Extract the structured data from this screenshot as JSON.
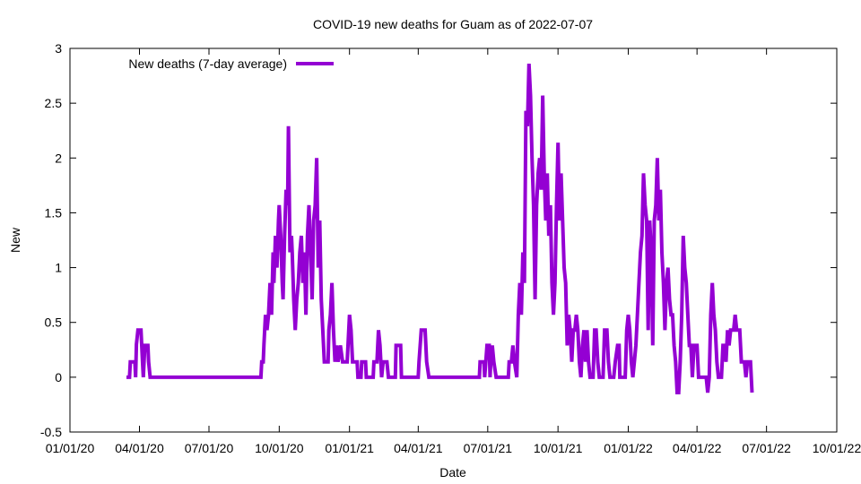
{
  "chart_data": {
    "type": "line",
    "title": "COVID-19 new deaths for Guam as of 2022-07-07",
    "xlabel": "Date",
    "ylabel": "New",
    "ylim": [
      -0.5,
      3
    ],
    "yticks": [
      "-0.5",
      "0",
      "0.5",
      "1",
      "1.5",
      "2",
      "2.5",
      "3"
    ],
    "xlim": [
      "2020-01-01",
      "2022-10-01"
    ],
    "xticks": [
      "01/01/20",
      "04/01/20",
      "07/01/20",
      "10/01/20",
      "01/01/21",
      "04/01/21",
      "07/01/21",
      "10/01/21",
      "01/01/22",
      "04/01/22",
      "07/01/22",
      "10/01/22"
    ],
    "legend": {
      "position": "top-left"
    },
    "colors": {
      "series": "#9400d3",
      "axis": "#000000"
    },
    "series": [
      {
        "name": "New deaths (7-day average)",
        "points": [
          [
            "2020-03-15",
            0
          ],
          [
            "2020-03-19",
            0
          ],
          [
            "2020-03-20",
            0.14
          ],
          [
            "2020-03-26",
            0.14
          ],
          [
            "2020-03-27",
            0
          ],
          [
            "2020-03-28",
            0.3
          ],
          [
            "2020-03-30",
            0.43
          ],
          [
            "2020-04-03",
            0.43
          ],
          [
            "2020-04-05",
            0.14
          ],
          [
            "2020-04-06",
            0
          ],
          [
            "2020-04-08",
            0.29
          ],
          [
            "2020-04-12",
            0.29
          ],
          [
            "2020-04-13",
            0.14
          ],
          [
            "2020-04-15",
            0
          ],
          [
            "2020-09-07",
            0
          ],
          [
            "2020-09-08",
            0.14
          ],
          [
            "2020-09-10",
            0.14
          ],
          [
            "2020-09-11",
            0.3
          ],
          [
            "2020-09-13",
            0.57
          ],
          [
            "2020-09-15",
            0.43
          ],
          [
            "2020-09-17",
            0.57
          ],
          [
            "2020-09-19",
            0.86
          ],
          [
            "2020-09-21",
            0.57
          ],
          [
            "2020-09-23",
            1.14
          ],
          [
            "2020-09-24",
            0.86
          ],
          [
            "2020-09-26",
            1.29
          ],
          [
            "2020-09-28",
            1.0
          ],
          [
            "2020-09-30",
            1.43
          ],
          [
            "2020-10-01",
            1.57
          ],
          [
            "2020-10-03",
            1.29
          ],
          [
            "2020-10-05",
            0.86
          ],
          [
            "2020-10-06",
            0.71
          ],
          [
            "2020-10-08",
            1.29
          ],
          [
            "2020-10-10",
            1.71
          ],
          [
            "2020-10-12",
            1.57
          ],
          [
            "2020-10-13",
            2.29
          ],
          [
            "2020-10-15",
            1.14
          ],
          [
            "2020-10-17",
            1.29
          ],
          [
            "2020-10-18",
            1.14
          ],
          [
            "2020-10-20",
            0.71
          ],
          [
            "2020-10-22",
            0.43
          ],
          [
            "2020-10-24",
            0.71
          ],
          [
            "2020-10-26",
            0.86
          ],
          [
            "2020-10-28",
            1.14
          ],
          [
            "2020-10-30",
            1.29
          ],
          [
            "2020-11-01",
            0.86
          ],
          [
            "2020-11-03",
            1.14
          ],
          [
            "2020-11-05",
            0.57
          ],
          [
            "2020-11-07",
            1.29
          ],
          [
            "2020-11-09",
            1.57
          ],
          [
            "2020-11-11",
            1.14
          ],
          [
            "2020-11-13",
            0.71
          ],
          [
            "2020-11-15",
            1.43
          ],
          [
            "2020-11-17",
            1.57
          ],
          [
            "2020-11-19",
            2.0
          ],
          [
            "2020-11-21",
            1.0
          ],
          [
            "2020-11-23",
            1.43
          ],
          [
            "2020-11-25",
            0.71
          ],
          [
            "2020-11-27",
            0.43
          ],
          [
            "2020-11-29",
            0.14
          ],
          [
            "2020-12-04",
            0.14
          ],
          [
            "2020-12-05",
            0.43
          ],
          [
            "2020-12-07",
            0.57
          ],
          [
            "2020-12-09",
            0.86
          ],
          [
            "2020-12-11",
            0.43
          ],
          [
            "2020-12-13",
            0.14
          ],
          [
            "2020-12-15",
            0.29
          ],
          [
            "2020-12-17",
            0.14
          ],
          [
            "2020-12-20",
            0.29
          ],
          [
            "2020-12-23",
            0.14
          ],
          [
            "2020-12-29",
            0.14
          ],
          [
            "2021-01-01",
            0.57
          ],
          [
            "2021-01-03",
            0.43
          ],
          [
            "2021-01-05",
            0.14
          ],
          [
            "2021-01-11",
            0.14
          ],
          [
            "2021-01-12",
            0
          ],
          [
            "2021-01-16",
            0
          ],
          [
            "2021-01-17",
            0.14
          ],
          [
            "2021-01-22",
            0.14
          ],
          [
            "2021-01-23",
            0
          ],
          [
            "2021-02-01",
            0
          ],
          [
            "2021-02-02",
            0.14
          ],
          [
            "2021-02-06",
            0.14
          ],
          [
            "2021-02-08",
            0.43
          ],
          [
            "2021-02-10",
            0.29
          ],
          [
            "2021-02-12",
            0
          ],
          [
            "2021-02-14",
            0.14
          ],
          [
            "2021-02-19",
            0.14
          ],
          [
            "2021-02-21",
            0
          ],
          [
            "2021-03-02",
            0
          ],
          [
            "2021-03-03",
            0.29
          ],
          [
            "2021-03-09",
            0.29
          ],
          [
            "2021-03-10",
            0
          ],
          [
            "2021-04-01",
            0
          ],
          [
            "2021-04-02",
            0.14
          ],
          [
            "2021-04-05",
            0.43
          ],
          [
            "2021-04-10",
            0.43
          ],
          [
            "2021-04-12",
            0.14
          ],
          [
            "2021-04-15",
            0
          ],
          [
            "2021-06-20",
            0
          ],
          [
            "2021-06-21",
            0.14
          ],
          [
            "2021-06-26",
            0.14
          ],
          [
            "2021-06-27",
            0
          ],
          [
            "2021-06-30",
            0.29
          ],
          [
            "2021-07-03",
            0.29
          ],
          [
            "2021-07-04",
            0
          ],
          [
            "2021-07-05",
            0.14
          ],
          [
            "2021-07-07",
            0.29
          ],
          [
            "2021-07-09",
            0.14
          ],
          [
            "2021-07-12",
            0
          ],
          [
            "2021-07-28",
            0
          ],
          [
            "2021-07-29",
            0.14
          ],
          [
            "2021-08-01",
            0.14
          ],
          [
            "2021-08-03",
            0.29
          ],
          [
            "2021-08-05",
            0.14
          ],
          [
            "2021-08-08",
            0
          ],
          [
            "2021-08-10",
            0.57
          ],
          [
            "2021-08-12",
            0.86
          ],
          [
            "2021-08-14",
            0.57
          ],
          [
            "2021-08-16",
            1.14
          ],
          [
            "2021-08-18",
            0.86
          ],
          [
            "2021-08-20",
            2.43
          ],
          [
            "2021-08-22",
            2.29
          ],
          [
            "2021-08-24",
            2.86
          ],
          [
            "2021-08-26",
            2.57
          ],
          [
            "2021-08-28",
            2.0
          ],
          [
            "2021-08-30",
            1.57
          ],
          [
            "2021-09-01",
            0.71
          ],
          [
            "2021-09-03",
            1.57
          ],
          [
            "2021-09-05",
            1.86
          ],
          [
            "2021-09-07",
            2.0
          ],
          [
            "2021-09-09",
            1.71
          ],
          [
            "2021-09-11",
            2.57
          ],
          [
            "2021-09-13",
            1.86
          ],
          [
            "2021-09-15",
            1.43
          ],
          [
            "2021-09-17",
            1.86
          ],
          [
            "2021-09-19",
            1.29
          ],
          [
            "2021-09-21",
            1.57
          ],
          [
            "2021-09-23",
            0.86
          ],
          [
            "2021-09-25",
            0.57
          ],
          [
            "2021-09-27",
            0.86
          ],
          [
            "2021-09-29",
            1.57
          ],
          [
            "2021-10-01",
            2.14
          ],
          [
            "2021-10-03",
            1.43
          ],
          [
            "2021-10-05",
            1.86
          ],
          [
            "2021-10-07",
            1.43
          ],
          [
            "2021-10-09",
            1.0
          ],
          [
            "2021-10-11",
            0.86
          ],
          [
            "2021-10-13",
            0.29
          ],
          [
            "2021-10-15",
            0.57
          ],
          [
            "2021-10-17",
            0.43
          ],
          [
            "2021-10-19",
            0.14
          ],
          [
            "2021-10-21",
            0.43
          ],
          [
            "2021-10-23",
            0.43
          ],
          [
            "2021-10-25",
            0.57
          ],
          [
            "2021-10-27",
            0.43
          ],
          [
            "2021-10-29",
            0.14
          ],
          [
            "2021-10-31",
            0
          ],
          [
            "2021-11-02",
            0.29
          ],
          [
            "2021-11-04",
            0.43
          ],
          [
            "2021-11-06",
            0.14
          ],
          [
            "2021-11-08",
            0.43
          ],
          [
            "2021-11-10",
            0.14
          ],
          [
            "2021-11-12",
            0
          ],
          [
            "2021-11-16",
            0
          ],
          [
            "2021-11-18",
            0.43
          ],
          [
            "2021-11-20",
            0.43
          ],
          [
            "2021-11-22",
            0.14
          ],
          [
            "2021-11-24",
            0
          ],
          [
            "2021-11-29",
            0
          ],
          [
            "2021-12-01",
            0.43
          ],
          [
            "2021-12-04",
            0.43
          ],
          [
            "2021-12-06",
            0.14
          ],
          [
            "2021-12-08",
            0
          ],
          [
            "2021-12-13",
            0
          ],
          [
            "2021-12-15",
            0.14
          ],
          [
            "2021-12-18",
            0.29
          ],
          [
            "2021-12-20",
            0.29
          ],
          [
            "2021-12-21",
            0
          ],
          [
            "2021-12-28",
            0
          ],
          [
            "2021-12-30",
            0.43
          ],
          [
            "2022-01-01",
            0.57
          ],
          [
            "2022-01-03",
            0.43
          ],
          [
            "2022-01-05",
            0.14
          ],
          [
            "2022-01-07",
            0
          ],
          [
            "2022-01-09",
            0.14
          ],
          [
            "2022-01-11",
            0.29
          ],
          [
            "2022-01-13",
            0.57
          ],
          [
            "2022-01-15",
            0.86
          ],
          [
            "2022-01-17",
            1.14
          ],
          [
            "2022-01-19",
            1.29
          ],
          [
            "2022-01-21",
            1.86
          ],
          [
            "2022-01-23",
            1.57
          ],
          [
            "2022-01-25",
            1.43
          ],
          [
            "2022-01-27",
            0.43
          ],
          [
            "2022-01-29",
            1.43
          ],
          [
            "2022-01-31",
            1.14
          ],
          [
            "2022-02-02",
            0.29
          ],
          [
            "2022-02-04",
            1.43
          ],
          [
            "2022-02-06",
            1.57
          ],
          [
            "2022-02-08",
            2.0
          ],
          [
            "2022-02-10",
            1.43
          ],
          [
            "2022-02-12",
            1.71
          ],
          [
            "2022-02-14",
            1.14
          ],
          [
            "2022-02-16",
            0.86
          ],
          [
            "2022-02-18",
            0.43
          ],
          [
            "2022-02-20",
            0.86
          ],
          [
            "2022-02-22",
            1.0
          ],
          [
            "2022-02-24",
            0.71
          ],
          [
            "2022-02-26",
            0.57
          ],
          [
            "2022-02-28",
            0.57
          ],
          [
            "2022-03-02",
            0.29
          ],
          [
            "2022-03-04",
            0.14
          ],
          [
            "2022-03-06",
            -0.14
          ],
          [
            "2022-03-08",
            -0.14
          ],
          [
            "2022-03-10",
            0.14
          ],
          [
            "2022-03-12",
            0.57
          ],
          [
            "2022-03-14",
            1.29
          ],
          [
            "2022-03-16",
            1.0
          ],
          [
            "2022-03-18",
            0.86
          ],
          [
            "2022-03-20",
            0.57
          ],
          [
            "2022-03-22",
            0.29
          ],
          [
            "2022-03-24",
            0.29
          ],
          [
            "2022-03-26",
            0
          ],
          [
            "2022-03-28",
            0.29
          ],
          [
            "2022-04-01",
            0.29
          ],
          [
            "2022-04-03",
            0
          ],
          [
            "2022-04-13",
            0
          ],
          [
            "2022-04-15",
            -0.14
          ],
          [
            "2022-04-17",
            0
          ],
          [
            "2022-04-19",
            0.57
          ],
          [
            "2022-04-21",
            0.86
          ],
          [
            "2022-04-23",
            0.57
          ],
          [
            "2022-04-25",
            0.43
          ],
          [
            "2022-04-27",
            0.14
          ],
          [
            "2022-04-29",
            0
          ],
          [
            "2022-05-03",
            0
          ],
          [
            "2022-05-05",
            0.29
          ],
          [
            "2022-05-07",
            0.29
          ],
          [
            "2022-05-09",
            0.14
          ],
          [
            "2022-05-11",
            0.43
          ],
          [
            "2022-05-13",
            0.29
          ],
          [
            "2022-05-15",
            0.43
          ],
          [
            "2022-05-19",
            0.43
          ],
          [
            "2022-05-21",
            0.57
          ],
          [
            "2022-05-23",
            0.43
          ],
          [
            "2022-05-27",
            0.43
          ],
          [
            "2022-05-29",
            0.14
          ],
          [
            "2022-06-02",
            0.14
          ],
          [
            "2022-06-04",
            0
          ],
          [
            "2022-06-06",
            0.14
          ],
          [
            "2022-06-10",
            0.14
          ],
          [
            "2022-06-12",
            -0.14
          ]
        ]
      }
    ]
  }
}
